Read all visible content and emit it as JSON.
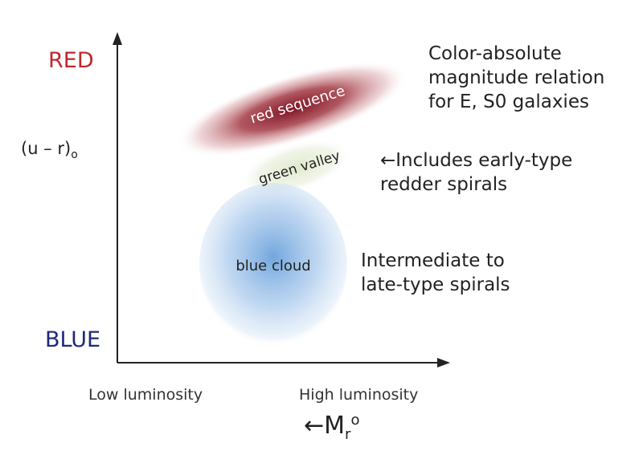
{
  "y_axis": {
    "top_label": "RED",
    "bottom_label": "BLUE",
    "quantity_main": "(u – r)",
    "quantity_sub": "o"
  },
  "x_axis": {
    "left_label": "Low luminosity",
    "right_label": "High luminosity",
    "quantity_arrow": "←",
    "quantity_main": "M",
    "quantity_sub": "r",
    "quantity_sup": "o"
  },
  "regions": {
    "red_sequence": "red sequence",
    "green_valley": "green valley",
    "blue_cloud": "blue cloud"
  },
  "annotations": {
    "red_sequence_note": [
      "Color-absolute",
      "magnitude relation",
      "for E, S0 galaxies"
    ],
    "green_valley_note": [
      "←Includes early-type",
      "redder spirals"
    ],
    "blue_cloud_note": [
      "Intermediate to",
      "late-type spirals"
    ]
  },
  "colors": {
    "red_label": "#c1272d",
    "blue_label": "#1f2a7a",
    "red_sequence_core": "#8a1c2c",
    "green_valley_fill": "#e4ecd6",
    "blue_cloud_core": "#7aaee0"
  }
}
